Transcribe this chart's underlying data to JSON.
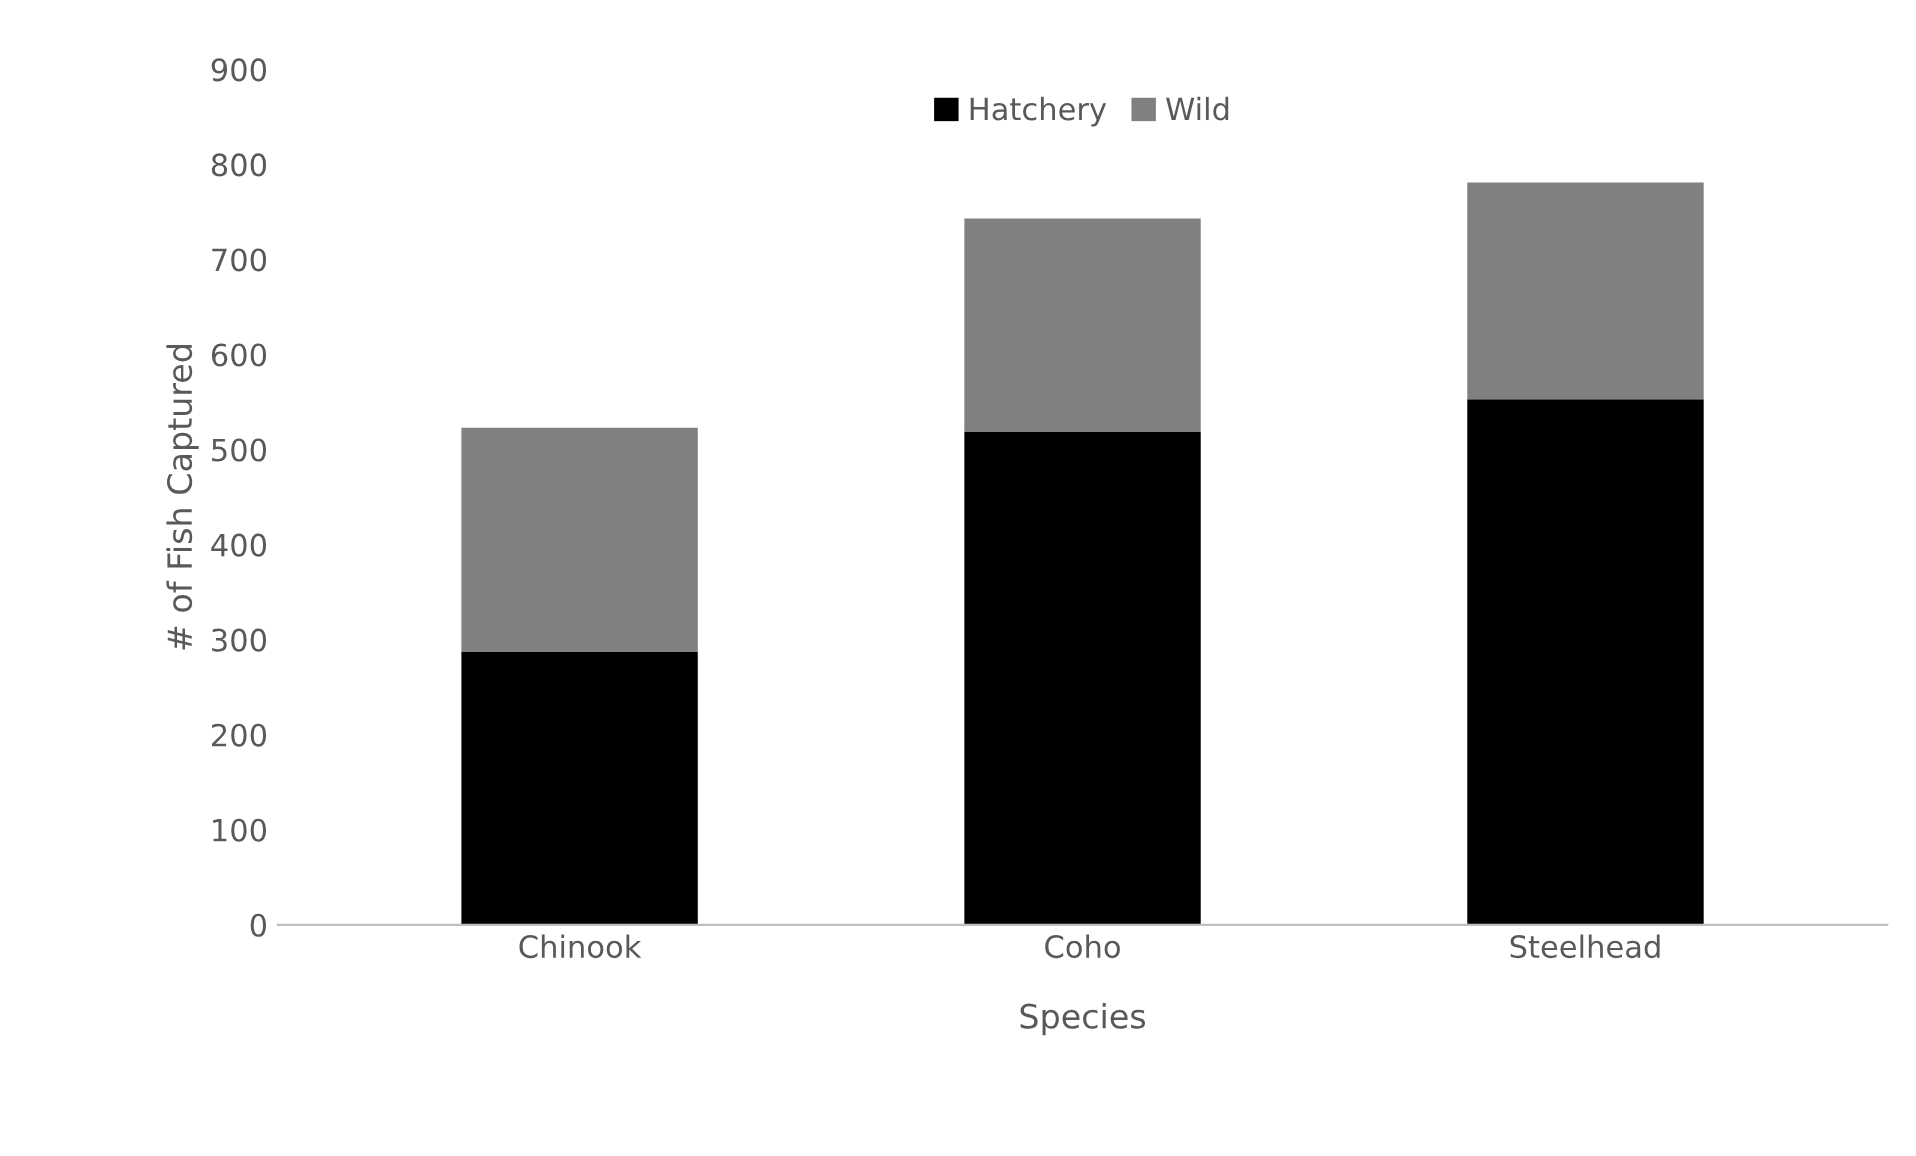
{
  "chart_data": {
    "type": "bar",
    "stacked": true,
    "xlabel": "Species",
    "ylabel": "# of Fish Captured",
    "categories": [
      "Chinook",
      "Coho",
      "Steelhead"
    ],
    "series": [
      {
        "name": "Hatchery",
        "color": "#000000",
        "values": [
          287,
          519,
          553
        ]
      },
      {
        "name": "Wild",
        "color": "#808080",
        "values": [
          236,
          224,
          228
        ]
      }
    ],
    "ylim": [
      0,
      900
    ],
    "yticks": [
      0,
      100,
      200,
      300,
      400,
      500,
      600,
      700,
      800,
      900
    ],
    "grid": false,
    "legend": "top"
  }
}
